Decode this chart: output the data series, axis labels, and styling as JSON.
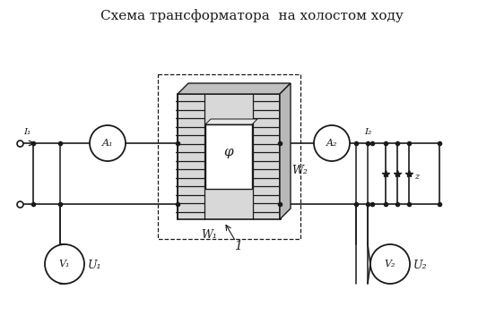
{
  "title": "Схема трансформатора  на холостом ходу",
  "title_fontsize": 11,
  "bg_color": "#ffffff",
  "line_color": "#1a1a1a",
  "labels": {
    "I1": "I₁",
    "A1": "A₁",
    "A2": "A₂",
    "W1": "W₁",
    "W2": "W₂",
    "V1": "V₁",
    "V2": "V₂",
    "U1": "U₁",
    "U2": "U₂",
    "phi": "φ",
    "I2": "I₂",
    "core_label": "1"
  },
  "figsize": [
    5.62,
    3.62
  ],
  "dpi": 100
}
